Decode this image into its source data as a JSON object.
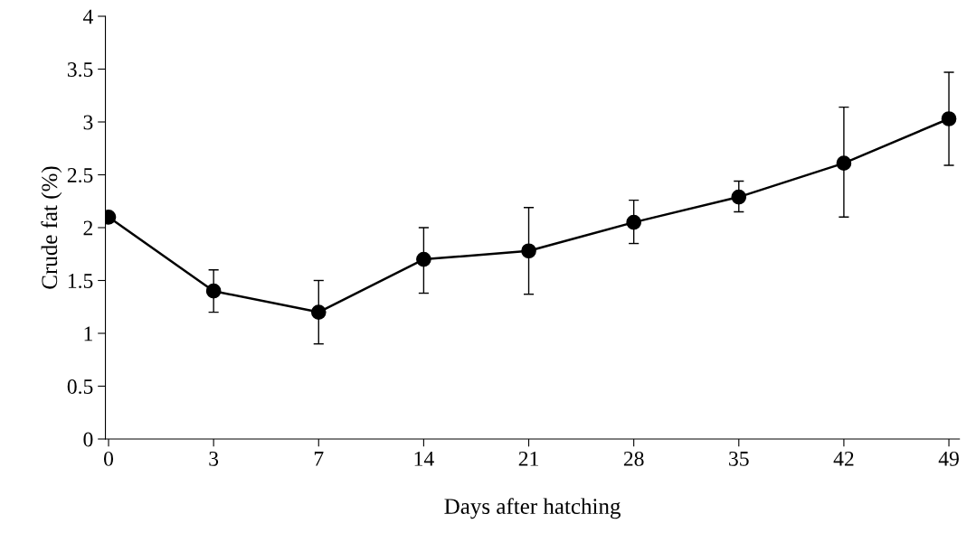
{
  "chart_data": {
    "type": "line",
    "xlabel": "Days after hatching",
    "ylabel": "Crude fat (%)",
    "categories": [
      "0",
      "3",
      "7",
      "14",
      "21",
      "28",
      "35",
      "42",
      "49"
    ],
    "series": [
      {
        "color": "#000000",
        "values": [
          2.1,
          1.4,
          1.2,
          1.7,
          1.78,
          2.05,
          2.29,
          2.61,
          3.03
        ],
        "errors": [
          null,
          [
            1.2,
            1.6
          ],
          [
            0.9,
            1.5
          ],
          [
            1.38,
            2.0
          ],
          [
            1.37,
            2.19
          ],
          [
            1.85,
            2.26
          ],
          [
            2.15,
            2.44
          ],
          [
            2.1,
            3.14
          ],
          [
            2.59,
            3.47
          ]
        ]
      }
    ],
    "ylim": [
      0,
      4
    ],
    "yticks": [
      0,
      0.5,
      1,
      1.5,
      2,
      2.5,
      3,
      3.5,
      4
    ],
    "marker": "circle",
    "line_style": "solid",
    "grid": false,
    "legend": false
  }
}
